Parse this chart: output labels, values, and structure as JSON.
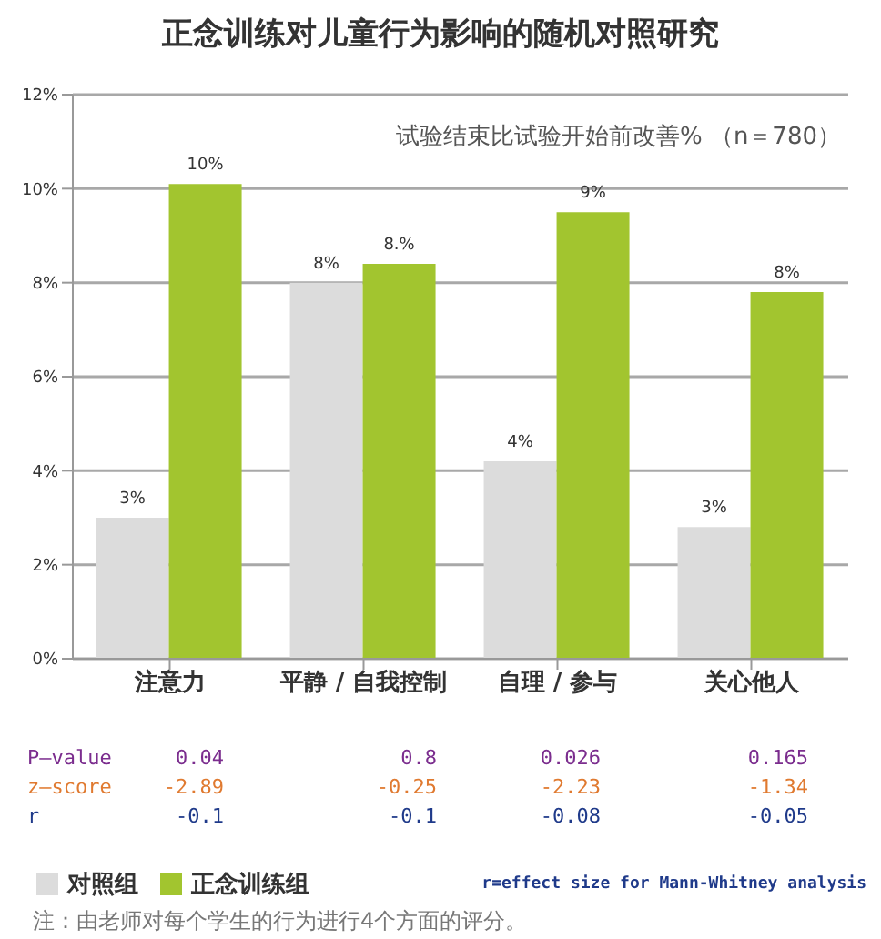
{
  "chart_data": {
    "type": "bar",
    "title": "正念训练对儿童行为影响的随机对照研究",
    "subtitle": "试验结束比试验开始前改善% （n＝780）",
    "categories": [
      "注意力",
      "平静 / 自我控制",
      "自理 / 参与",
      "关心他人"
    ],
    "series": [
      {
        "name": "对照组",
        "color": "#dcdcdc",
        "values": [
          3.0,
          8.0,
          4.2,
          2.8
        ],
        "value_labels": [
          "3%",
          "8%",
          "4%",
          "3%"
        ]
      },
      {
        "name": "正念训练组",
        "color": "#a2c52f",
        "values": [
          10.1,
          8.4,
          9.5,
          7.8
        ],
        "value_labels": [
          "10%",
          "8.%",
          "9%",
          "8%"
        ]
      }
    ],
    "ylim": [
      0,
      12
    ],
    "yticks": [
      {
        "value": 0,
        "label": "0%"
      },
      {
        "value": 2,
        "label": "2%"
      },
      {
        "value": 4,
        "label": "4%"
      },
      {
        "value": 6,
        "label": "6%"
      },
      {
        "value": 8,
        "label": "8%"
      },
      {
        "value": 10,
        "label": "10%"
      },
      {
        "value": 12,
        "label": "12%"
      }
    ],
    "grid": "y",
    "legend": "bottom",
    "annotations": [
      "P—value",
      "0.04",
      "0.8",
      "0.026",
      "0.165",
      "z—score",
      "-2.89",
      "-0.25",
      "-2.23",
      "-1.34",
      "r",
      "-0.1",
      "-0.1",
      "-0.08",
      "-0.05",
      "r=effect size for Mann-Whitney analysis",
      "注：由老师对每个学生的行为进行4个方面的评分。"
    ]
  }
}
